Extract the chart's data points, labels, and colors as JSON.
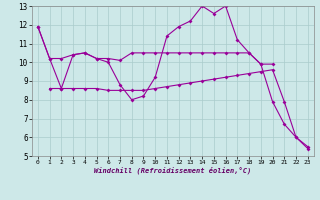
{
  "xlabel": "Windchill (Refroidissement éolien,°C)",
  "background_color": "#cde8e8",
  "line_color": "#990099",
  "xlim": [
    -0.5,
    23.5
  ],
  "ylim": [
    5,
    13
  ],
  "yticks": [
    5,
    6,
    7,
    8,
    9,
    10,
    11,
    12,
    13
  ],
  "xticks": [
    0,
    1,
    2,
    3,
    4,
    5,
    6,
    7,
    8,
    9,
    10,
    11,
    12,
    13,
    14,
    15,
    16,
    17,
    18,
    19,
    20,
    21,
    22,
    23
  ],
  "series1_x": [
    0,
    1,
    2,
    3,
    4,
    5,
    6,
    7,
    8,
    9,
    10,
    11,
    12,
    13,
    14,
    15,
    16,
    17,
    18,
    19,
    20
  ],
  "series1_y": [
    11.9,
    10.2,
    10.2,
    10.4,
    10.5,
    10.2,
    10.2,
    10.1,
    10.5,
    10.5,
    10.5,
    10.5,
    10.5,
    10.5,
    10.5,
    10.5,
    10.5,
    10.5,
    10.5,
    9.9,
    9.9
  ],
  "series2_x": [
    1,
    2,
    3,
    4,
    5,
    6,
    7,
    8,
    9,
    10,
    11,
    12,
    13,
    14,
    15,
    16,
    17,
    18,
    19,
    20,
    21,
    22,
    23
  ],
  "series2_y": [
    8.6,
    8.6,
    8.6,
    8.6,
    8.6,
    8.5,
    8.5,
    8.5,
    8.5,
    8.6,
    8.7,
    8.8,
    8.9,
    9.0,
    9.1,
    9.2,
    9.3,
    9.4,
    9.5,
    9.6,
    7.9,
    6.0,
    5.5
  ],
  "series3_x": [
    0,
    1,
    2,
    3,
    4,
    5,
    6,
    7,
    8,
    9,
    10,
    11,
    12,
    13,
    14,
    15,
    16,
    17,
    18,
    19,
    20,
    21,
    22,
    23
  ],
  "series3_y": [
    11.9,
    10.2,
    8.6,
    10.4,
    10.5,
    10.2,
    10.0,
    8.8,
    8.0,
    8.2,
    9.2,
    11.4,
    11.9,
    12.2,
    13.0,
    12.6,
    13.0,
    11.2,
    10.5,
    9.9,
    7.9,
    6.7,
    6.0,
    5.4
  ],
  "grid_color": "#aacccc"
}
